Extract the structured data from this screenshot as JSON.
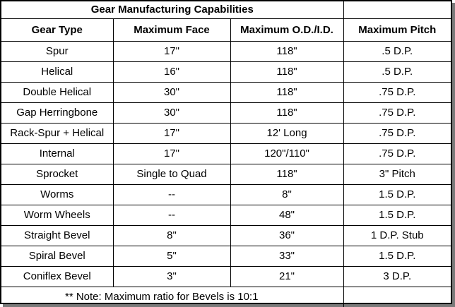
{
  "table": {
    "title": "Gear Manufacturing Capabilities",
    "headers": [
      "Gear Type",
      "Maximum Face",
      "Maximum O.D./I.D.",
      "Maximum Pitch"
    ],
    "rows": [
      [
        "Spur",
        "17\"",
        "118\"",
        ".5 D.P."
      ],
      [
        "Helical",
        "16\"",
        "118\"",
        ".5 D.P."
      ],
      [
        "Double Helical",
        "30\"",
        "118\"",
        ".75 D.P."
      ],
      [
        "Gap Herringbone",
        "30\"",
        "118\"",
        ".75 D.P."
      ],
      [
        "Rack-Spur + Helical",
        "17\"",
        "12' Long",
        ".75 D.P."
      ],
      [
        "Internal",
        "17\"",
        "120\"/110\"",
        ".75 D.P."
      ],
      [
        "Sprocket",
        "Single to Quad",
        "118\"",
        "3\" Pitch"
      ],
      [
        "Worms",
        "--",
        "8\"",
        "1.5 D.P."
      ],
      [
        "Worm Wheels",
        "--",
        "48\"",
        "1.5 D.P."
      ],
      [
        "Straight Bevel",
        "8\"",
        "36\"",
        "1 D.P. Stub"
      ],
      [
        "Spiral Bevel",
        "5\"",
        "33\"",
        "1.5 D.P."
      ],
      [
        "Coniflex Bevel",
        "3\"",
        "21\"",
        "3 D.P."
      ]
    ],
    "note": "** Note:  Maximum ratio for Bevels is 10:1"
  }
}
